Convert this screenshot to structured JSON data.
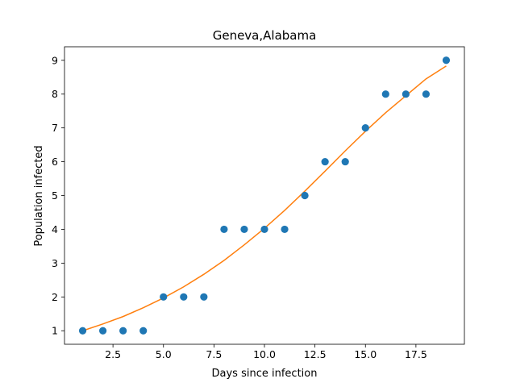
{
  "chart_data": {
    "type": "scatter",
    "title": "Geneva,Alabama",
    "xlabel": "Days since infection",
    "ylabel": "Population infected",
    "xlim": [
      0.1,
      19.9
    ],
    "ylim": [
      0.6,
      9.4
    ],
    "xticks": [
      2.5,
      5.0,
      7.5,
      10.0,
      12.5,
      15.0,
      17.5
    ],
    "xtick_labels": [
      "2.5",
      "5.0",
      "7.5",
      "10.0",
      "12.5",
      "15.0",
      "17.5"
    ],
    "yticks": [
      1,
      2,
      3,
      4,
      5,
      6,
      7,
      8,
      9
    ],
    "ytick_labels": [
      "1",
      "2",
      "3",
      "4",
      "5",
      "6",
      "7",
      "8",
      "9"
    ],
    "grid": false,
    "series": [
      {
        "kind": "scatter",
        "color": "#1f77b4",
        "x": [
          1,
          2,
          3,
          4,
          5,
          6,
          7,
          8,
          9,
          10,
          11,
          12,
          13,
          14,
          15,
          16,
          17,
          18,
          19
        ],
        "y": [
          1,
          1,
          1,
          1,
          2,
          2,
          2,
          4,
          4,
          4,
          4,
          5,
          6,
          6,
          7,
          8,
          8,
          8,
          9
        ]
      },
      {
        "kind": "line",
        "color": "#ff7f0e",
        "x": [
          1,
          2,
          3,
          4,
          5,
          6,
          7,
          8,
          9,
          10,
          11,
          12,
          13,
          14,
          15,
          16,
          17,
          18,
          19
        ],
        "y": [
          1.0,
          1.2,
          1.42,
          1.68,
          1.97,
          2.3,
          2.67,
          3.08,
          3.54,
          4.03,
          4.56,
          5.13,
          5.72,
          6.32,
          6.9,
          7.45,
          7.95,
          8.45,
          8.83
        ]
      }
    ]
  }
}
